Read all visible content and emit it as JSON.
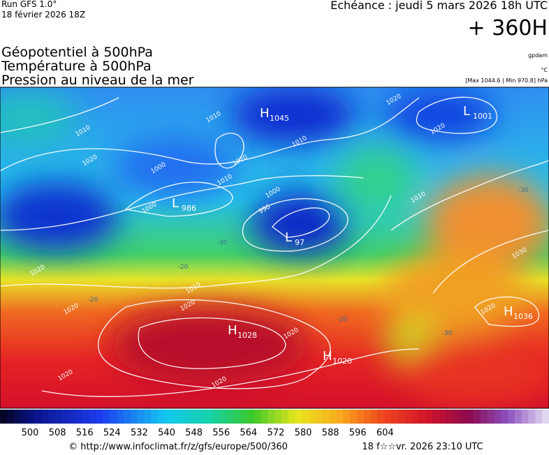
{
  "header": {
    "run": "Run GFS 1.0°",
    "run_date": "18 février 2026 18Z",
    "echeance": "Echéance : jeudi 5 mars 2026 18h UTC",
    "lead": "+ 360H"
  },
  "titles": [
    "Géopotentiel à 500hPa",
    "Température à 500hPa",
    "Pression au niveau de la mer"
  ],
  "units": [
    "gpdam",
    "°C",
    "[Max 1044.6 | Min 970.8] hPa"
  ],
  "pressure_centers": [
    {
      "letter": "H",
      "value": "1045"
    },
    {
      "letter": "L",
      "value": "1001"
    },
    {
      "letter": "L",
      "value": "986"
    },
    {
      "letter": "L",
      "value": "97"
    },
    {
      "letter": "H",
      "value": "1036"
    },
    {
      "letter": "H",
      "value": "1028"
    },
    {
      "letter": "H",
      "value": "1020"
    }
  ],
  "isobar_labels": [
    "1010",
    "1020",
    "1020",
    "1010",
    "1000",
    "1000",
    "990",
    "1000",
    "1010",
    "1020",
    "1010",
    "1020",
    "1020",
    "1020",
    "1020",
    "1010",
    "1020",
    "1030",
    "1010",
    "1020",
    "1020",
    "1020"
  ],
  "temperature_labels": [
    "-30",
    "-20",
    "-20",
    "-30",
    "-30",
    "-20"
  ],
  "colorbar": {
    "labels": [
      "500",
      "508",
      "516",
      "524",
      "532",
      "540",
      "548",
      "556",
      "564",
      "572",
      "580",
      "588",
      "596",
      "604"
    ]
  },
  "footer": {
    "url": "© http://www.infoclimat.fr/z/gfs/europe/500/360",
    "timestamp": "18 f☆☆vr. 2026 23:10 UTC"
  }
}
